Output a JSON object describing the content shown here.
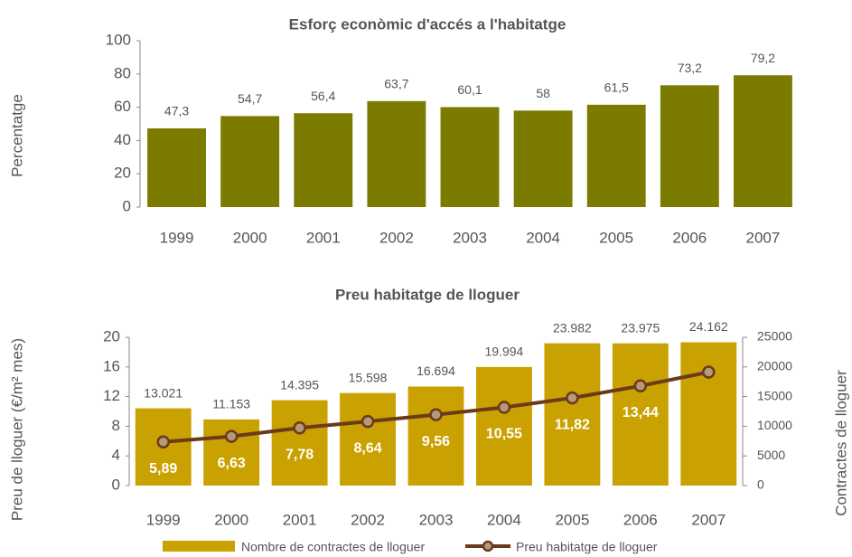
{
  "chart_data": [
    {
      "type": "bar",
      "title": "Esforç econòmic d'accés a l'habitatge",
      "ylabel": "Percentatge",
      "categories": [
        "1999",
        "2000",
        "2001",
        "2002",
        "2003",
        "2004",
        "2005",
        "2006",
        "2007"
      ],
      "values": [
        47.3,
        54.7,
        56.4,
        63.7,
        60.1,
        58,
        61.5,
        73.2,
        79.2
      ],
      "value_labels": [
        "47,3",
        "54,7",
        "56,4",
        "63,7",
        "60,1",
        "58",
        "61,5",
        "73,2",
        "79,2"
      ],
      "color": "#7b7b00",
      "ylim": [
        0,
        100
      ],
      "yticks": [
        0,
        20,
        40,
        60,
        80,
        100
      ]
    },
    {
      "type": "combo",
      "title": "Preu habitatge de lloguer",
      "ylabel": "Preu de lloguer (€/m² mes)",
      "y2label": "Contractes de lloguer",
      "categories": [
        "1999",
        "2000",
        "2001",
        "2002",
        "2003",
        "2004",
        "2005",
        "2006",
        "2007"
      ],
      "series": [
        {
          "name": "Nombre de contractes de lloguer",
          "type": "bar",
          "axis": "y2",
          "color": "#c9a100",
          "values": [
            13021,
            11153,
            14395,
            15598,
            16694,
            19994,
            23982,
            23975,
            24162
          ],
          "value_labels": [
            "13.021",
            "11.153",
            "14.395",
            "15.598",
            "16.694",
            "19.994",
            "23.982",
            "23.975",
            "24.162"
          ]
        },
        {
          "name": "Preu habitatge de lloguer",
          "type": "line",
          "color": "#6b3a1a",
          "values": [
            5.89,
            6.63,
            7.78,
            8.64,
            9.56,
            10.55,
            11.82,
            13.44,
            15.3
          ],
          "value_labels": [
            "5,89",
            "6,63",
            "7,78",
            "8,64",
            "9,56",
            "10,55",
            "11,82",
            "13,44",
            null
          ]
        }
      ],
      "ylim": [
        0,
        20
      ],
      "yticks": [
        0,
        4,
        8,
        12,
        16,
        20
      ],
      "y2lim": [
        0,
        25000
      ],
      "y2ticks": [
        0,
        5000,
        10000,
        15000,
        20000,
        25000
      ]
    }
  ]
}
